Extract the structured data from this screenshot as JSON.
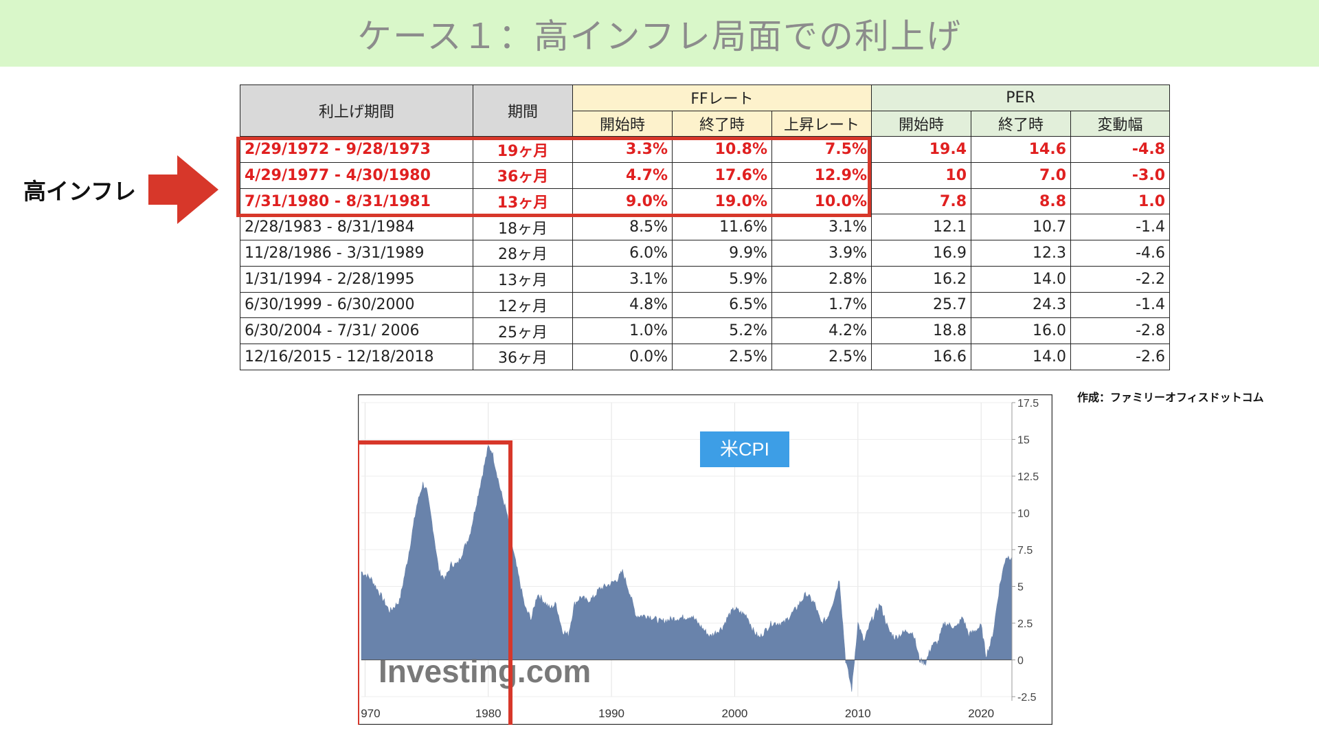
{
  "slide": {
    "title": "ケース１：高インフレ局面での利上げ",
    "side_label": "高インフレ",
    "credit": "作成：ファミリーオフィスドットコム"
  },
  "colors": {
    "title_bg": "#d9f7c9",
    "title_text": "#8c8c8c",
    "highlight": "#d7372a",
    "highlight_text": "#e02020",
    "ff_header_bg": "#fdf2cc",
    "per_header_bg": "#e2efda",
    "grey_header_bg": "#d9d9d9",
    "area_fill": "#6983ab",
    "base_band": "#b3c4dc"
  },
  "table": {
    "headers": {
      "period": "利上げ期間",
      "duration": "期間",
      "ff_group": "FFレート",
      "per_group": "PER",
      "ff_start": "開始時",
      "ff_end": "終了時",
      "ff_rise": "上昇レート",
      "per_start": "開始時",
      "per_end": "終了時",
      "per_change": "変動幅"
    },
    "rows": [
      {
        "period": "2/29/1972 - 9/28/1973",
        "duration": "19ヶ月",
        "ff_start": "3.3%",
        "ff_end": "10.8%",
        "ff_rise": "7.5%",
        "per_start": "19.4",
        "per_end": "14.6",
        "per_change": "-4.8"
      },
      {
        "period": "4/29/1977 - 4/30/1980",
        "duration": "36ヶ月",
        "ff_start": "4.7%",
        "ff_end": "17.6%",
        "ff_rise": "12.9%",
        "per_start": "10",
        "per_end": "7.0",
        "per_change": "-3.0"
      },
      {
        "period": "7/31/1980 - 8/31/1981",
        "duration": "13ヶ月",
        "ff_start": "9.0%",
        "ff_end": "19.0%",
        "ff_rise": "10.0%",
        "per_start": "7.8",
        "per_end": "8.8",
        "per_change": "1.0"
      },
      {
        "period": "2/28/1983 - 8/31/1984",
        "duration": "18ヶ月",
        "ff_start": "8.5%",
        "ff_end": "11.6%",
        "ff_rise": "3.1%",
        "per_start": "12.1",
        "per_end": "10.7",
        "per_change": "-1.4"
      },
      {
        "period": "11/28/1986 - 3/31/1989",
        "duration": "28ヶ月",
        "ff_start": "6.0%",
        "ff_end": "9.9%",
        "ff_rise": "3.9%",
        "per_start": "16.9",
        "per_end": "12.3",
        "per_change": "-4.6"
      },
      {
        "period": "1/31/1994 - 2/28/1995",
        "duration": "13ヶ月",
        "ff_start": "3.1%",
        "ff_end": "5.9%",
        "ff_rise": "2.8%",
        "per_start": "16.2",
        "per_end": "14.0",
        "per_change": "-2.2"
      },
      {
        "period": "6/30/1999 - 6/30/2000",
        "duration": "12ヶ月",
        "ff_start": "4.8%",
        "ff_end": "6.5%",
        "ff_rise": "1.7%",
        "per_start": "25.7",
        "per_end": "24.3",
        "per_change": "-1.4"
      },
      {
        "period": "6/30/2004 - 7/31/ 2006",
        "duration": "25ヶ月",
        "ff_start": "1.0%",
        "ff_end": "5.2%",
        "ff_rise": "4.2%",
        "per_start": "18.8",
        "per_end": "16.0",
        "per_change": "-2.8"
      },
      {
        "period": "12/16/2015 - 12/18/2018",
        "duration": "36ヶ月",
        "ff_start": "0.0%",
        "ff_end": "2.5%",
        "ff_rise": "2.5%",
        "per_start": "16.6",
        "per_end": "14.0",
        "per_change": "-2.6"
      }
    ],
    "highlighted_rows": 3
  },
  "chart_data": {
    "type": "area",
    "title": "米CPI",
    "watermark": "Investing.com",
    "x_ticks": [
      "970",
      "1980",
      "1990",
      "2000",
      "2010",
      "2020"
    ],
    "y_ticks": [
      "17.5",
      "15",
      "12.5",
      "10",
      "7.5",
      "5",
      "2.5",
      "0",
      "-2.5"
    ],
    "xlim": [
      1969.7,
      2022.5
    ],
    "ylim": [
      -2.5,
      17.5
    ],
    "y_axis_side": "right",
    "highlight_range": [
      1969.7,
      1981.8
    ],
    "x": [
      1969.7,
      1970.5,
      1971.2,
      1972.0,
      1972.8,
      1973.5,
      1974.2,
      1974.7,
      1975.0,
      1975.5,
      1976.0,
      1976.5,
      1977.0,
      1977.5,
      1978.0,
      1978.5,
      1979.0,
      1979.5,
      1980.0,
      1980.3,
      1981.0,
      1981.5,
      1982.0,
      1982.5,
      1983.0,
      1983.5,
      1984.0,
      1984.5,
      1985.0,
      1985.5,
      1986.0,
      1986.5,
      1987.0,
      1987.5,
      1988.0,
      1988.5,
      1989.0,
      1989.5,
      1990.0,
      1990.5,
      1990.9,
      1991.5,
      1992.0,
      1993.0,
      1994.0,
      1995.0,
      1996.0,
      1996.5,
      1997.0,
      1998.0,
      1999.0,
      1999.5,
      2000.0,
      2000.5,
      2001.0,
      2001.5,
      2002.0,
      2002.5,
      2003.0,
      2004.0,
      2005.0,
      2005.8,
      2006.5,
      2007.0,
      2007.5,
      2008.0,
      2008.5,
      2009.0,
      2009.5,
      2010.0,
      2010.5,
      2011.0,
      2011.8,
      2012.5,
      2013.0,
      2014.0,
      2014.5,
      2015.0,
      2015.5,
      2016.0,
      2016.5,
      2017.0,
      2018.0,
      2018.5,
      2019.0,
      2020.0,
      2020.4,
      2020.8,
      2021.0,
      2021.5,
      2022.0,
      2022.5
    ],
    "y": [
      6.0,
      5.5,
      4.5,
      3.3,
      4.0,
      7.0,
      10.5,
      12.0,
      11.5,
      9.0,
      6.0,
      5.5,
      6.5,
      6.5,
      7.5,
      8.5,
      10.5,
      12.5,
      14.5,
      14.2,
      11.5,
      10.0,
      7.5,
      5.5,
      3.5,
      2.8,
      4.5,
      4.0,
      3.5,
      3.8,
      2.0,
      1.7,
      3.8,
      4.3,
      4.0,
      4.2,
      4.8,
      5.0,
      5.2,
      5.5,
      6.0,
      4.5,
      3.0,
      3.0,
      2.6,
      2.8,
      2.9,
      3.0,
      2.5,
      1.6,
      2.2,
      3.0,
      3.5,
      3.2,
      3.0,
      2.0,
      1.5,
      2.0,
      2.5,
      2.5,
      3.5,
      4.5,
      3.8,
      2.5,
      2.8,
      4.0,
      5.5,
      0.0,
      -2.0,
      2.5,
      1.2,
      2.5,
      3.8,
      2.0,
      1.5,
      2.0,
      1.8,
      0.0,
      -0.2,
      1.0,
      1.2,
      2.5,
      2.2,
      2.9,
      1.7,
      2.3,
      0.3,
      1.2,
      2.0,
      5.0,
      7.0,
      7.0
    ]
  }
}
